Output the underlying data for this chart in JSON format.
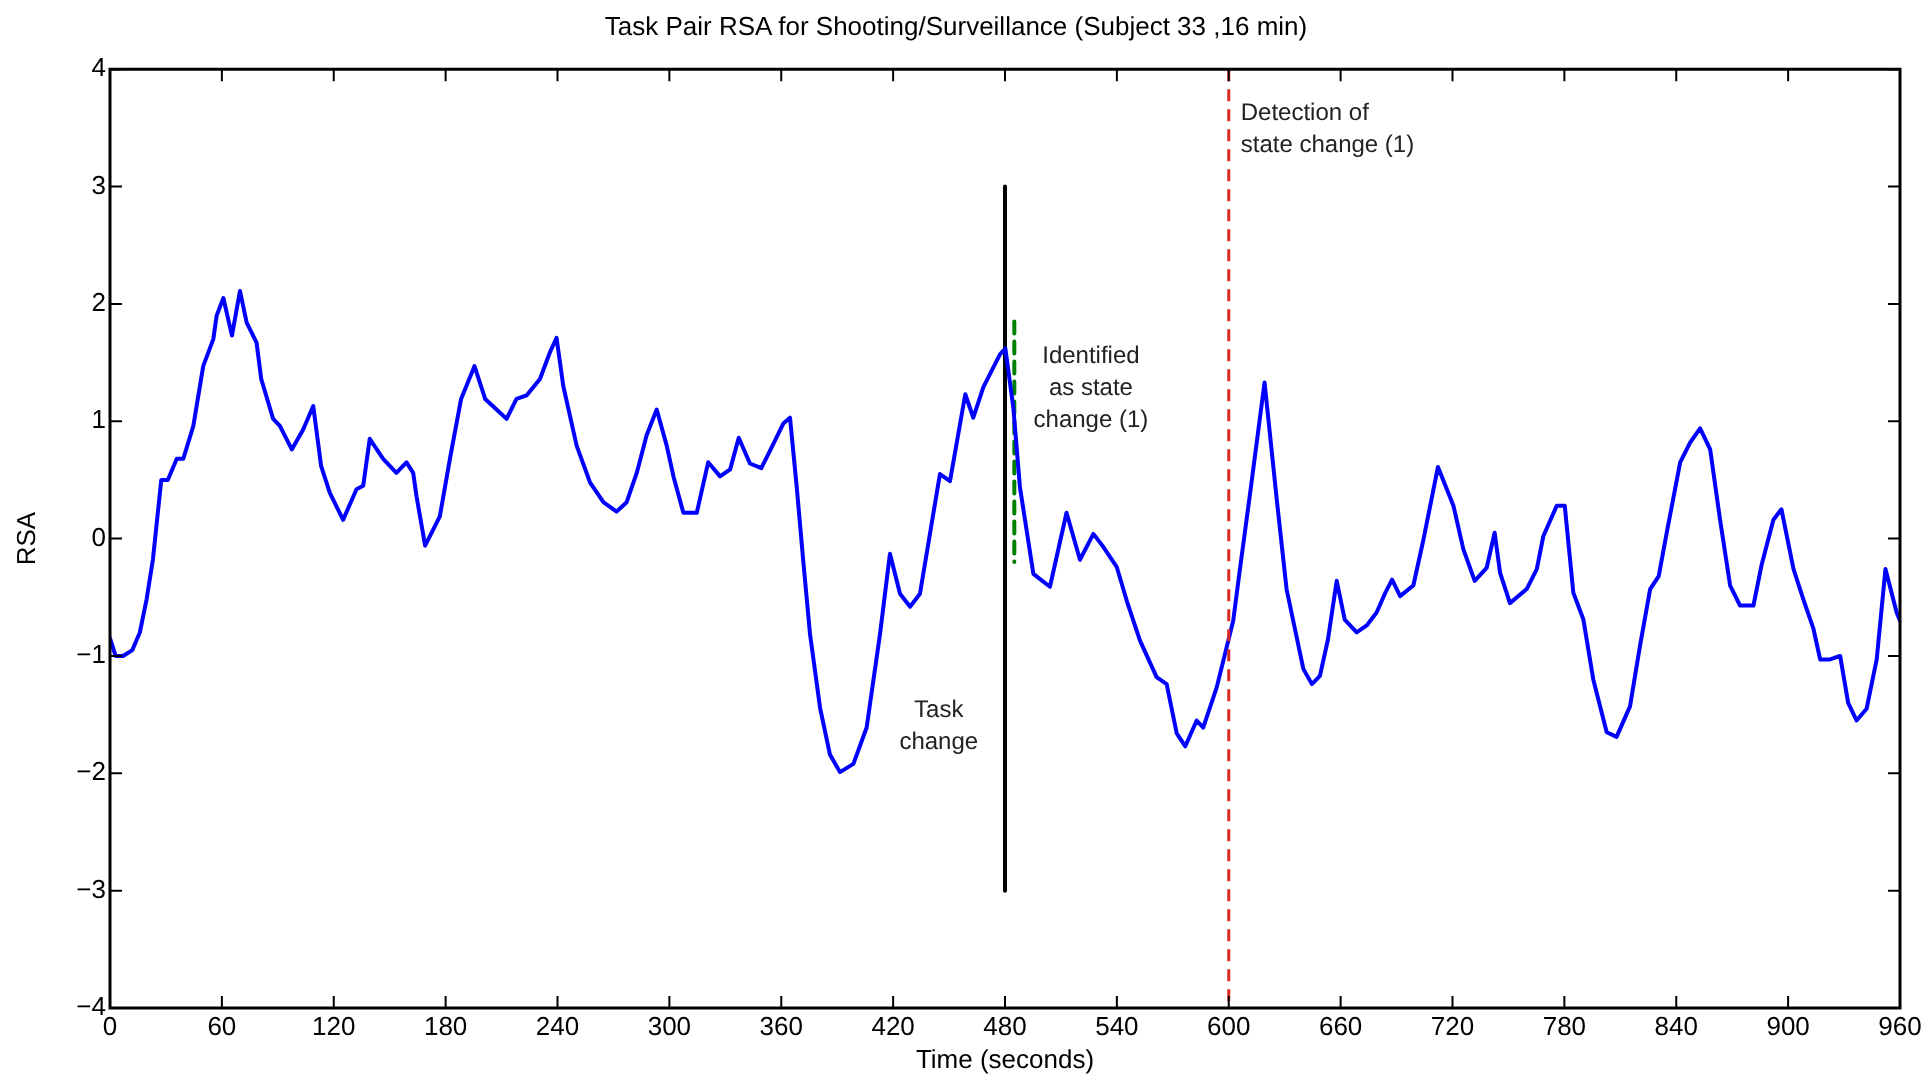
{
  "chart_data": {
    "type": "line",
    "title": "Task Pair RSA for Shooting/Surveillance (Subject 33 ,16 min)",
    "xlabel": "Time (seconds)",
    "ylabel": "RSA",
    "marker": "none",
    "xlim": [
      0,
      960
    ],
    "xticks": [
      0,
      60,
      120,
      180,
      240,
      300,
      360,
      420,
      480,
      540,
      600,
      660,
      720,
      780,
      840,
      900,
      960
    ],
    "ylim": [
      -4,
      4
    ],
    "yticks": [
      -4,
      -3,
      -2,
      -1,
      0,
      1,
      2,
      3,
      4
    ],
    "series": [
      {
        "color": "#0000ff",
        "line_style": "solid",
        "x": [
          0,
          3,
          7,
          12,
          16,
          19.6,
          23,
          27.5,
          31,
          35.8,
          39.3,
          44.7,
          50,
          55.4,
          57.2,
          60.8,
          65.4,
          69.7,
          73.3,
          78.6,
          81.1,
          87.5,
          91.1,
          97.5,
          103.6,
          109,
          113.2,
          117.9,
          125,
          132.2,
          135.8,
          139.3,
          146.5,
          153.6,
          159,
          162.6,
          164.4,
          169,
          176.9,
          182.3,
          188.3,
          195.5,
          201.2,
          207.3,
          212.7,
          218,
          223.4,
          230.6,
          236,
          239.5,
          243.1,
          250.3,
          257.4,
          264.6,
          271.7,
          277.1,
          282.5,
          287.8,
          293.2,
          298.6,
          302.2,
          307.5,
          314.7,
          320.8,
          327.2,
          332.6,
          337.2,
          343.2,
          349.3,
          354,
          361.1,
          364.7,
          368.3,
          371.8,
          375.4,
          380.8,
          386.1,
          391.5,
          398.7,
          405.8,
          413,
          418.3,
          423.7,
          429.1,
          434.4,
          445.1,
          450.5,
          458.7,
          463,
          468.4,
          477.3,
          480.2,
          484.5,
          488,
          495.2,
          504.1,
          513,
          520.2,
          527.4,
          532.7,
          539.9,
          545.3,
          552.4,
          561.3,
          566.7,
          572.1,
          576.7,
          582.8,
          586.3,
          593.5,
          602.4,
          606,
          611.4,
          619.2,
          625.7,
          631,
          640,
          644.6,
          648.9,
          653.2,
          657.9,
          662.2,
          668.6,
          674,
          679.3,
          684,
          687.6,
          691.9,
          699,
          704.4,
          712.2,
          720.5,
          725.8,
          731.9,
          738.3,
          742.6,
          745.5,
          750.8,
          759.8,
          765.2,
          768.7,
          775.9,
          780.2,
          784.8,
          790.2,
          795.5,
          802.7,
          808,
          815.2,
          820.6,
          826,
          830.6,
          834.9,
          842.1,
          847.5,
          852.8,
          858.2,
          863.5,
          868.9,
          874.2,
          881.4,
          885.7,
          892.1,
          896.4,
          902.9,
          908.2,
          913.6,
          917.2,
          922.5,
          927.9,
          932.2,
          936.7,
          942.1,
          947.5,
          952.2,
          958.2,
          960
        ],
        "values": [
          -0.85,
          -1.0,
          -1.0,
          -0.95,
          -0.8,
          -0.52,
          -0.18,
          0.5,
          0.5,
          0.68,
          0.68,
          0.96,
          1.47,
          1.7,
          1.9,
          2.05,
          1.73,
          2.11,
          1.84,
          1.67,
          1.36,
          1.02,
          0.96,
          0.76,
          0.93,
          1.13,
          0.62,
          0.39,
          0.16,
          0.42,
          0.45,
          0.85,
          0.68,
          0.56,
          0.65,
          0.56,
          0.36,
          -0.06,
          0.19,
          0.68,
          1.19,
          1.47,
          1.19,
          1.1,
          1.02,
          1.19,
          1.22,
          1.36,
          1.59,
          1.71,
          1.3,
          0.79,
          0.48,
          0.31,
          0.23,
          0.31,
          0.56,
          0.88,
          1.1,
          0.79,
          0.53,
          0.22,
          0.22,
          0.65,
          0.53,
          0.59,
          0.86,
          0.64,
          0.6,
          0.75,
          0.98,
          1.03,
          0.44,
          -0.19,
          -0.81,
          -1.44,
          -1.84,
          -1.99,
          -1.92,
          -1.61,
          -0.81,
          -0.13,
          -0.47,
          -0.58,
          -0.47,
          0.55,
          0.49,
          1.23,
          1.03,
          1.29,
          1.57,
          1.62,
          1.11,
          0.44,
          -0.3,
          -0.41,
          0.22,
          -0.18,
          0.04,
          -0.07,
          -0.24,
          -0.53,
          -0.87,
          -1.18,
          -1.24,
          -1.66,
          -1.77,
          -1.55,
          -1.61,
          -1.27,
          -0.7,
          -0.26,
          0.38,
          1.33,
          0.34,
          -0.43,
          -1.11,
          -1.24,
          -1.17,
          -0.86,
          -0.36,
          -0.69,
          -0.8,
          -0.74,
          -0.63,
          -0.46,
          -0.35,
          -0.49,
          -0.4,
          -0.01,
          0.61,
          0.28,
          -0.09,
          -0.36,
          -0.25,
          0.05,
          -0.29,
          -0.55,
          -0.43,
          -0.26,
          0.02,
          0.28,
          0.28,
          -0.46,
          -0.69,
          -1.2,
          -1.65,
          -1.69,
          -1.43,
          -0.91,
          -0.43,
          -0.32,
          0.05,
          0.65,
          0.82,
          0.94,
          0.76,
          0.16,
          -0.4,
          -0.57,
          -0.57,
          -0.23,
          0.16,
          0.25,
          -0.26,
          -0.52,
          -0.77,
          -1.03,
          -1.03,
          -1.0,
          -1.4,
          -1.55,
          -1.45,
          -1.03,
          -0.26,
          -0.63,
          -0.7
        ]
      },
      {
        "type": "line",
        "color": "#000000",
        "line_style": "solid",
        "x": [
          480,
          480
        ],
        "values": [
          3,
          -3
        ]
      },
      {
        "type": "line",
        "color": "#008000",
        "line_style": "dashed",
        "x": [
          485,
          485
        ],
        "values": [
          1.85,
          -0.2
        ]
      }
    ],
    "ref_lines": [
      {
        "axis": "x",
        "value": 600,
        "label": "Detection of\nstate change (1)",
        "color": "#d62a1e",
        "line_style": "dashed"
      }
    ],
    "annotations": [
      "Task\nchange",
      "Identified\nas state\nchange (1)"
    ]
  }
}
